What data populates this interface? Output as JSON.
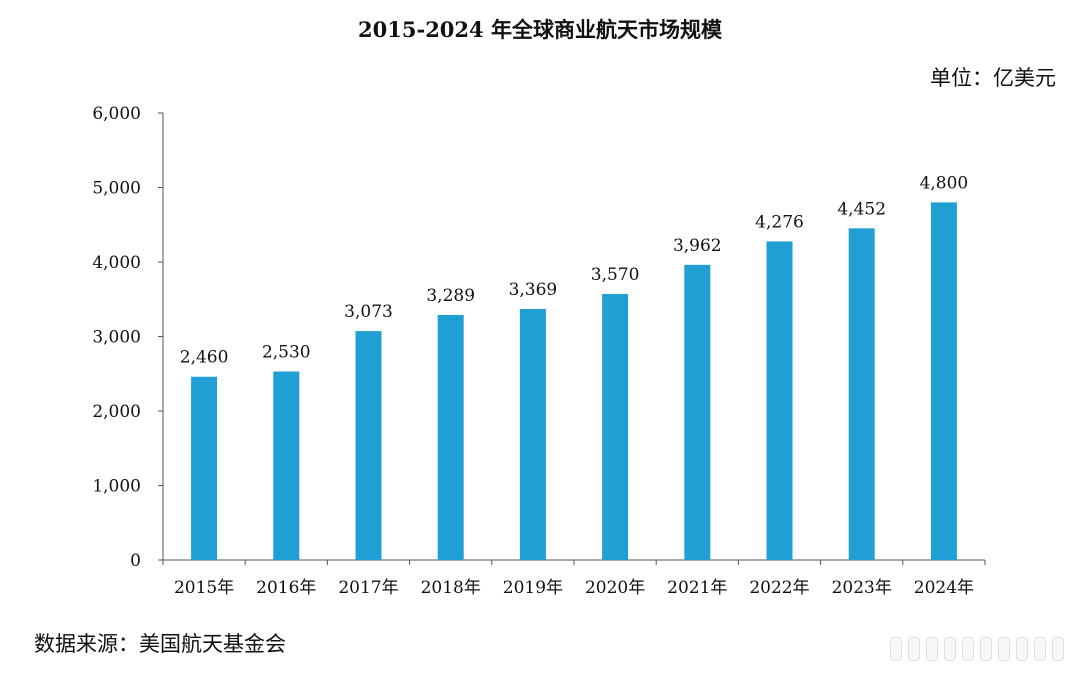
{
  "header": {
    "title": "2015-2024 年全球商业航天市场规模",
    "unit": "单位：亿美元"
  },
  "footer": {
    "source": "数据来源：美国航天基金会"
  },
  "colors": {
    "bar": "#1f9fd4",
    "axis": "#555555",
    "text": "#111111"
  },
  "chart_data": {
    "type": "bar",
    "title": "2015-2024 年全球商业航天市场规模",
    "xlabel": "",
    "ylabel": "单位：亿美元",
    "categories": [
      "2015年",
      "2016年",
      "2017年",
      "2018年",
      "2019年",
      "2020年",
      "2021年",
      "2022年",
      "2023年",
      "2024年"
    ],
    "values": [
      2460,
      2530,
      3073,
      3289,
      3369,
      3570,
      3962,
      4276,
      4452,
      4800
    ],
    "value_labels": [
      "2,460",
      "2,530",
      "3,073",
      "3,289",
      "3,369",
      "3,570",
      "3,962",
      "4,276",
      "4,452",
      "4,800"
    ],
    "ylim": [
      0,
      6000
    ],
    "yticks": [
      0,
      1000,
      2000,
      3000,
      4000,
      5000,
      6000
    ],
    "ytick_labels": [
      "0",
      "1,000",
      "2,000",
      "3,000",
      "4,000",
      "5,000",
      "6,000"
    ],
    "grid": false,
    "legend": "none"
  }
}
